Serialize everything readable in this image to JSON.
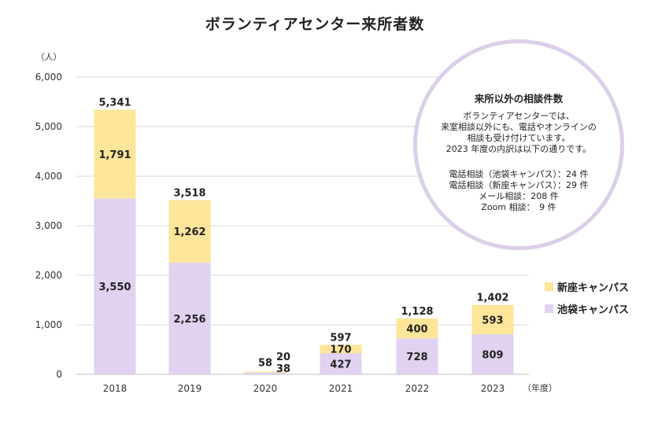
{
  "chart_data": {
    "type": "bar",
    "stacked": true,
    "title": "ボランティアセンター来所者数",
    "y_unit_label": "（人）",
    "x_unit_label": "（年度）",
    "categories": [
      "2018",
      "2019",
      "2020",
      "2021",
      "2022",
      "2023"
    ],
    "ylim": [
      0,
      6000
    ],
    "yticks": [
      "0",
      "1,000",
      "2,000",
      "3,000",
      "4,000",
      "5,000",
      "6,000"
    ],
    "grid": true,
    "legend_position": "right",
    "series": [
      {
        "name": "池袋キャンパス",
        "color": "#e0d2f0",
        "values": [
          3550,
          2256,
          38,
          427,
          728,
          809
        ],
        "labels": [
          "3,550",
          "2,256",
          "38",
          "427",
          "728",
          "809"
        ]
      },
      {
        "name": "新座キャンパス",
        "color": "#fde59a",
        "values": [
          1791,
          1262,
          20,
          170,
          400,
          593
        ],
        "labels": [
          "1,791",
          "1,262",
          "20",
          "170",
          "400",
          "593"
        ]
      }
    ],
    "totals": [
      5341,
      3518,
      58,
      597,
      1128,
      1402
    ],
    "total_labels": [
      "5,341",
      "3,518",
      "58",
      "597",
      "1,128",
      "1,402"
    ]
  },
  "legend": {
    "shinza": {
      "label": "新座キャンパス",
      "color": "#fde59a"
    },
    "ikebukuro": {
      "label": "池袋キャンパス",
      "color": "#e0d2f0"
    }
  },
  "info": {
    "title": "来所以外の相談件数",
    "body": [
      "ボランティアセンターでは、",
      "来室相談以外にも、電話やオンラインの",
      "相談も受け付けています。",
      "2023 年度の内訳は以下の通りです。"
    ],
    "details": [
      "電話相談（池袋キャンパス）：24 件",
      "電話相談（新座キャンパス）：29 件",
      "メール相談：208 件",
      "Zoom 相談：　9 件"
    ]
  },
  "colors": {
    "grid": "#d9d9d9",
    "axis": "#bfbfbf",
    "circle_border": "#dccfea"
  }
}
